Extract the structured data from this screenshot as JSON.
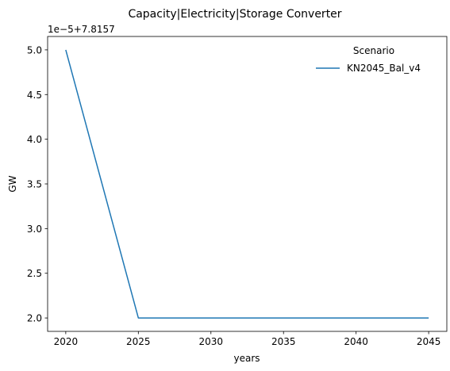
{
  "chart_data": {
    "type": "line",
    "title": "Capacity|Electricity|Storage Converter",
    "xlabel": "years",
    "ylabel": "GW",
    "y_offset_label": "1e−5+7.8157",
    "x_ticks": [
      "2020",
      "2025",
      "2030",
      "2035",
      "2040",
      "2045"
    ],
    "y_ticks": [
      "2.0",
      "2.5",
      "3.0",
      "3.5",
      "4.0",
      "4.5",
      "5.0"
    ],
    "xlim": [
      2018.75,
      2046.25
    ],
    "ylim_scaled": [
      1.85,
      5.15
    ],
    "legend": {
      "title": "Scenario",
      "placement": "top-right",
      "frame": false
    },
    "grid": false,
    "series": [
      {
        "name": "KN2045_Bal_v4",
        "color": "#1f77b4",
        "x": [
          2020,
          2025,
          2030,
          2035,
          2040,
          2045
        ],
        "y_scaled": [
          5.0,
          2.0,
          2.0,
          2.0,
          2.0,
          2.0
        ]
      }
    ]
  }
}
